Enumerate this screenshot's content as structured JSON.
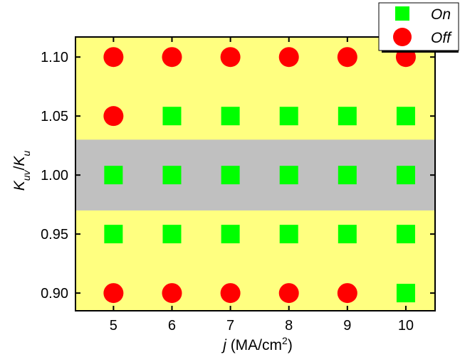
{
  "chart_data": {
    "type": "scatter",
    "xlabel": {
      "var": "j",
      "unit_prefix": " (MA/cm",
      "unit_sup": "2",
      "unit_suffix": ")"
    },
    "ylabel": {
      "num": "K",
      "num_sub": "uv",
      "sep": "/",
      "den": "K",
      "den_sub": "u"
    },
    "x_ticks": [
      "5",
      "6",
      "7",
      "8",
      "9",
      "10"
    ],
    "y_ticks": [
      "0.90",
      "0.95",
      "1.00",
      "1.05",
      "1.10"
    ],
    "x_tick_values": [
      5,
      6,
      7,
      8,
      9,
      10
    ],
    "y_tick_values": [
      0.9,
      0.95,
      1.0,
      1.05,
      1.1
    ],
    "xlim": [
      4.35,
      10.5
    ],
    "ylim": [
      0.885,
      1.117
    ],
    "background": {
      "color": "#ffff80",
      "band": {
        "ymin": 0.97,
        "ymax": 1.03,
        "color": "#c0c0c0"
      }
    },
    "legend": {
      "placement": "top-right",
      "entries": [
        {
          "label": "On",
          "marker": "square",
          "color": "#00ff00"
        },
        {
          "label": "Off",
          "marker": "circle",
          "color": "#ff0000"
        }
      ]
    },
    "series": [
      {
        "name": "On",
        "marker": "square",
        "color": "#00ff00",
        "points": [
          [
            6,
            1.05
          ],
          [
            7,
            1.05
          ],
          [
            8,
            1.05
          ],
          [
            9,
            1.05
          ],
          [
            10,
            1.05
          ],
          [
            5,
            1.0
          ],
          [
            6,
            1.0
          ],
          [
            7,
            1.0
          ],
          [
            8,
            1.0
          ],
          [
            9,
            1.0
          ],
          [
            10,
            1.0
          ],
          [
            5,
            0.95
          ],
          [
            6,
            0.95
          ],
          [
            7,
            0.95
          ],
          [
            8,
            0.95
          ],
          [
            9,
            0.95
          ],
          [
            10,
            0.95
          ],
          [
            10,
            0.9
          ]
        ]
      },
      {
        "name": "Off",
        "marker": "circle",
        "color": "#ff0000",
        "points": [
          [
            5,
            1.1
          ],
          [
            6,
            1.1
          ],
          [
            7,
            1.1
          ],
          [
            8,
            1.1
          ],
          [
            9,
            1.1
          ],
          [
            10,
            1.1
          ],
          [
            5,
            1.05
          ],
          [
            5,
            0.9
          ],
          [
            6,
            0.9
          ],
          [
            7,
            0.9
          ],
          [
            8,
            0.9
          ],
          [
            9,
            0.9
          ]
        ]
      }
    ]
  }
}
